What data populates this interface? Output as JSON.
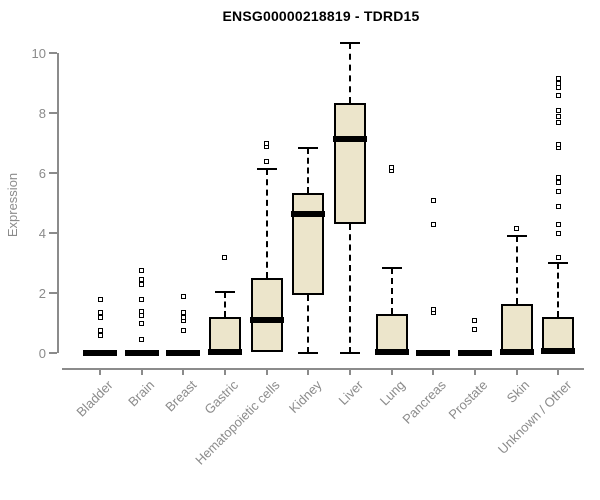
{
  "title": "ENSG00000218819 - TDRD15",
  "chart_data": {
    "type": "boxplot",
    "title": "ENSG00000218819 - TDRD15",
    "xlabel": "",
    "ylabel": "Expression",
    "ylim": [
      0,
      10.5
    ],
    "yticks": [
      0,
      2,
      4,
      6,
      8,
      10
    ],
    "grid": false,
    "legend": "none",
    "colors": {
      "box_fill": "#ece5cb",
      "box_border": "#000000",
      "median": "#000000",
      "whisker": "#000000",
      "axis": "#8b8b8b",
      "tick_label": "#8b8b8b",
      "title": "#000000",
      "background": "#ffffff"
    },
    "categories": [
      "Bladder",
      "Brain",
      "Breast",
      "Gastric",
      "Hematopoietic cells",
      "Kidney",
      "Liver",
      "Lung",
      "Pancreas",
      "Prostate",
      "Skin",
      "Unknown / Other"
    ],
    "series": [
      {
        "category": "Bladder",
        "q1": 0,
        "median": 0,
        "q3": 0,
        "whisker_low": 0,
        "whisker_high": 0,
        "outliers": [
          0.6,
          0.75,
          1.2,
          1.35,
          1.8
        ]
      },
      {
        "category": "Brain",
        "q1": 0,
        "median": 0,
        "q3": 0,
        "whisker_low": 0,
        "whisker_high": 0,
        "outliers": [
          0.45,
          1.0,
          1.25,
          1.4,
          1.8,
          2.3,
          2.45,
          2.75
        ]
      },
      {
        "category": "Breast",
        "q1": 0,
        "median": 0,
        "q3": 0,
        "whisker_low": 0,
        "whisker_high": 0,
        "outliers": [
          0.75,
          1.1,
          1.2,
          1.35,
          1.9
        ]
      },
      {
        "category": "Gastric",
        "q1": 0,
        "median": 0.05,
        "q3": 1.2,
        "whisker_low": 0,
        "whisker_high": 2.05,
        "outliers": [
          3.2
        ]
      },
      {
        "category": "Hematopoietic cells",
        "q1": 0.05,
        "median": 1.1,
        "q3": 2.5,
        "whisker_low": 0,
        "whisker_high": 6.15,
        "outliers": [
          6.4,
          6.9,
          7.0
        ]
      },
      {
        "category": "Kidney",
        "q1": 1.95,
        "median": 4.65,
        "q3": 5.35,
        "whisker_low": 0,
        "whisker_high": 6.85,
        "outliers": []
      },
      {
        "category": "Liver",
        "q1": 4.3,
        "median": 7.15,
        "q3": 8.35,
        "whisker_low": 0,
        "whisker_high": 10.35,
        "outliers": []
      },
      {
        "category": "Lung",
        "q1": 0,
        "median": 0.05,
        "q3": 1.3,
        "whisker_low": 0,
        "whisker_high": 2.85,
        "outliers": [
          6.1,
          6.2
        ]
      },
      {
        "category": "Pancreas",
        "q1": 0,
        "median": 0,
        "q3": 0,
        "whisker_low": 0,
        "whisker_high": 0,
        "outliers": [
          1.35,
          1.45,
          4.3,
          5.1
        ]
      },
      {
        "category": "Prostate",
        "q1": 0,
        "median": 0,
        "q3": 0,
        "whisker_low": 0,
        "whisker_high": 0,
        "outliers": [
          0.8,
          1.1
        ]
      },
      {
        "category": "Skin",
        "q1": 0,
        "median": 0.05,
        "q3": 1.65,
        "whisker_low": 0,
        "whisker_high": 3.9,
        "outliers": [
          4.15
        ]
      },
      {
        "category": "Unknown / Other",
        "q1": 0,
        "median": 0.08,
        "q3": 1.2,
        "whisker_low": 0,
        "whisker_high": 3.0,
        "outliers": [
          3.2,
          4.0,
          4.3,
          4.9,
          5.4,
          5.7,
          5.85,
          6.85,
          6.95,
          7.7,
          7.9,
          8.1,
          8.6,
          8.85,
          9.0,
          9.15
        ]
      }
    ]
  }
}
